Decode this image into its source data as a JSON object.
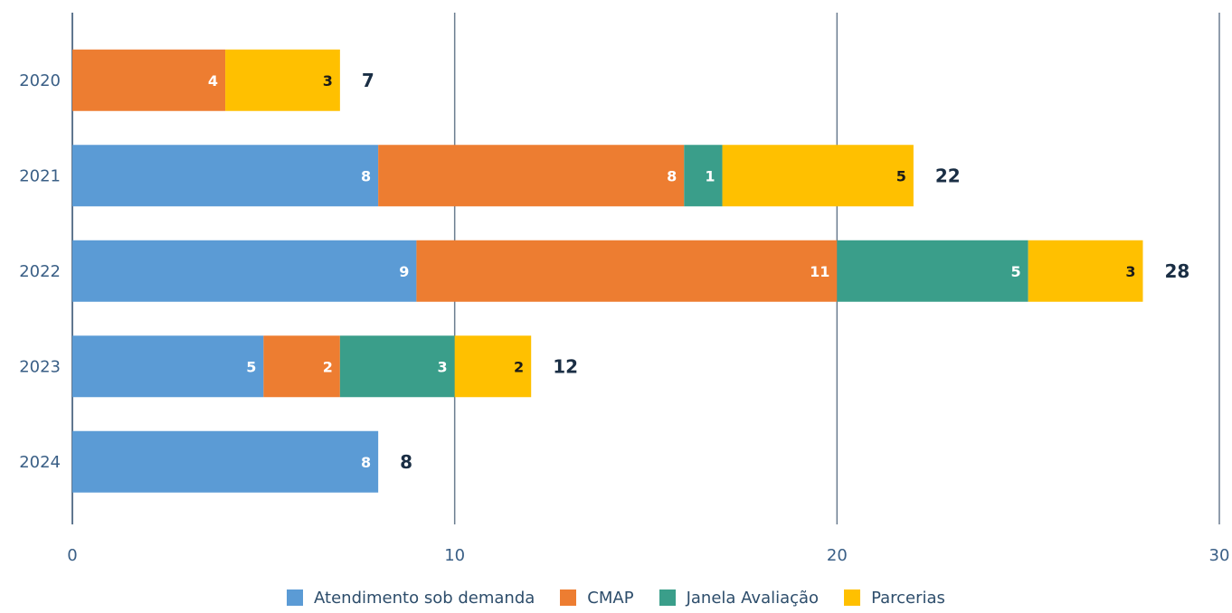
{
  "chart_data": {
    "type": "bar",
    "orientation": "horizontal",
    "stacked": true,
    "categories": [
      "2020",
      "2021",
      "2022",
      "2023",
      "2024"
    ],
    "series": [
      {
        "name": "Atendimento sob demanda",
        "color": "#5b9bd5",
        "label_color": "#ffffff",
        "values": [
          0,
          8,
          9,
          5,
          8
        ]
      },
      {
        "name": "CMAP",
        "color": "#ed7d31",
        "label_color": "#ffffff",
        "values": [
          4,
          8,
          11,
          2,
          0
        ]
      },
      {
        "name": "Janela Avaliação",
        "color": "#3a9e8a",
        "label_color": "#ffffff",
        "values": [
          0,
          1,
          5,
          3,
          0
        ]
      },
      {
        "name": "Parcerias",
        "color": "#ffc000",
        "label_color": "#1a1a1a",
        "values": [
          3,
          5,
          3,
          2,
          0
        ]
      }
    ],
    "totals": [
      "7",
      "22",
      "28",
      "12",
      "8"
    ],
    "xlim": [
      0,
      30
    ],
    "xticks": [
      "0",
      "10",
      "20",
      "30"
    ],
    "grid": "vertical",
    "legend_position": "bottom",
    "title": "",
    "xlabel": "",
    "ylabel": ""
  }
}
